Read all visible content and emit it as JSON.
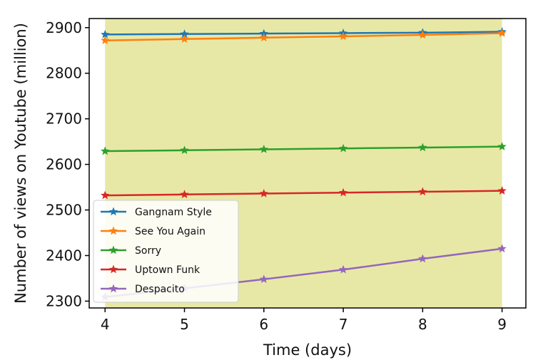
{
  "chart_data": {
    "type": "line",
    "title": "",
    "xlabel": "Time (days)",
    "ylabel": "Number of views on Youtube (million)",
    "x": [
      4,
      5,
      6,
      7,
      8,
      9
    ],
    "xlim": [
      3.8,
      9.3
    ],
    "ylim": [
      2285,
      2920
    ],
    "xticks": [
      4,
      5,
      6,
      7,
      8,
      9
    ],
    "yticks": [
      2300,
      2400,
      2500,
      2600,
      2700,
      2800,
      2900
    ],
    "shaded_region": {
      "x_from": 4,
      "x_to": 9,
      "color": "#e8e8a6"
    },
    "grid": false,
    "legend_position": "lower-left",
    "marker": "star",
    "series": [
      {
        "name": "Gangnam Style",
        "color": "#1f77b4",
        "values": [
          2885,
          2886,
          2887,
          2888,
          2889,
          2891
        ]
      },
      {
        "name": "See You Again",
        "color": "#ff7f0e",
        "values": [
          2872,
          2875,
          2878,
          2881,
          2884,
          2888
        ]
      },
      {
        "name": "Sorry",
        "color": "#2ca02c",
        "values": [
          2629,
          2631,
          2633,
          2635,
          2637,
          2639
        ]
      },
      {
        "name": "Uptown Funk",
        "color": "#d62728",
        "values": [
          2532,
          2534,
          2536,
          2538,
          2540,
          2542
        ]
      },
      {
        "name": "Despacito",
        "color": "#9467bd",
        "values": [
          2309,
          2328,
          2348,
          2369,
          2393,
          2415
        ]
      }
    ]
  }
}
